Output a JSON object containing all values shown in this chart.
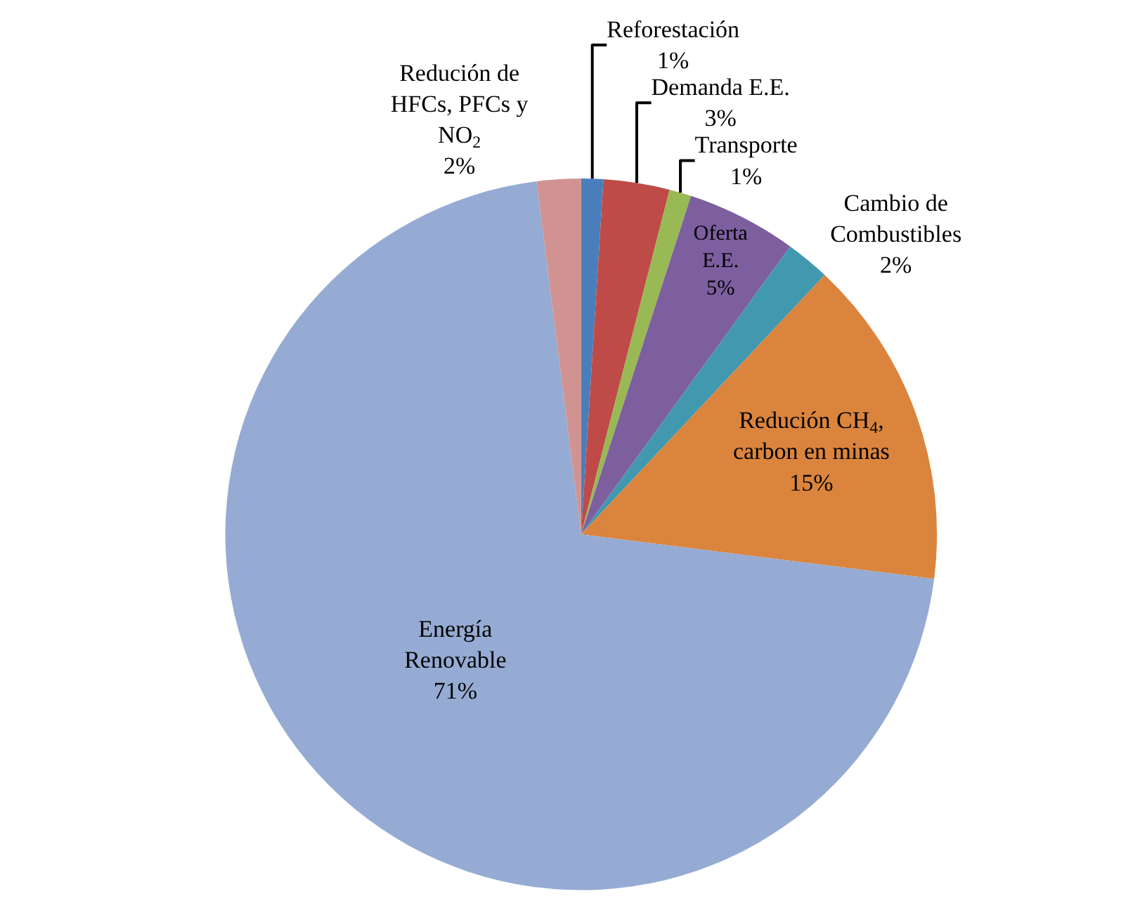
{
  "chart_data": {
    "type": "pie",
    "categories": [
      "Reforestación",
      "Demanda E.E.",
      "Transporte",
      "Oferta\nE.E.",
      "Cambio de\nCombustibles",
      "Redución CH$_{4}$,\ncarbon en minas",
      "Energía\nRenovable",
      "Redución de\nHFCs, PFCs y\nNO$_{2}$"
    ],
    "values": [
      1,
      3,
      1,
      5,
      2,
      15,
      71,
      2
    ],
    "colors": [
      "#4a7ebb",
      "#be4b48",
      "#98b954",
      "#7d5fa0",
      "#4198af",
      "#db843d",
      "#95abd3",
      "#d19392"
    ],
    "value_labels": [
      "1%",
      "3%",
      "1%",
      "5%",
      "2%",
      "15%",
      "71%",
      "2%"
    ],
    "legend": false
  }
}
